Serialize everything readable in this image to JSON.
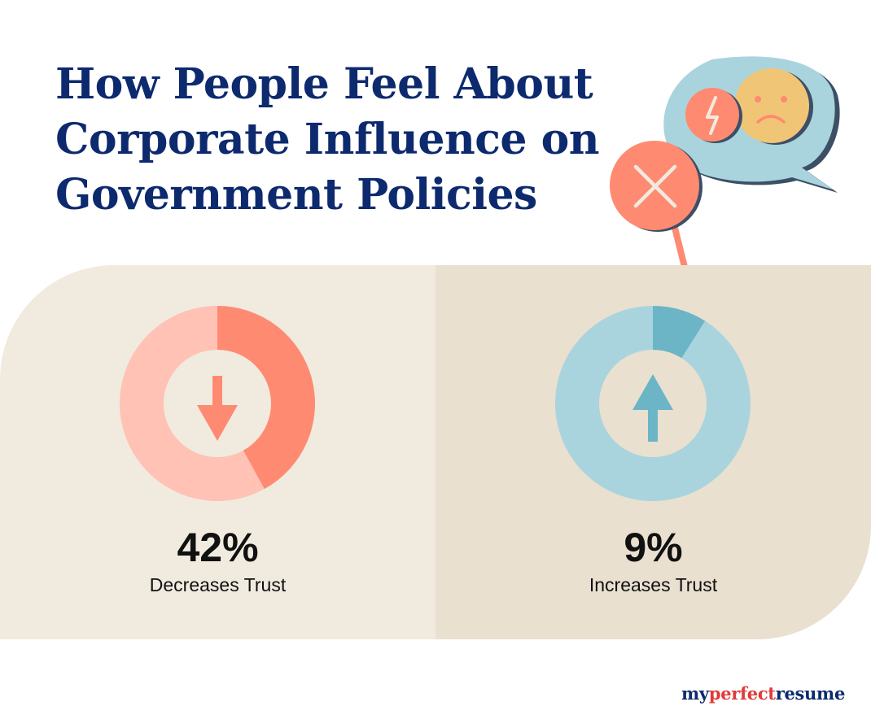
{
  "title_lines": [
    "How People Feel About",
    "Corporate Influence on",
    "Government Policies"
  ],
  "colors": {
    "title": "#0d2a6e",
    "decrease_filled": "#ff8a72",
    "decrease_track": "#ffc2b5",
    "increase_filled": "#6bb5c6",
    "increase_track": "#a9d4de",
    "donut_hole_left": "#f1ebdf",
    "donut_hole_right": "#e9e0d0"
  },
  "chart_data": [
    {
      "type": "pie",
      "values": [
        42,
        58
      ],
      "value_label": "42%",
      "label": "Decreases Trust",
      "icon": "arrow-down-icon"
    },
    {
      "type": "pie",
      "values": [
        9,
        91
      ],
      "value_label": "9%",
      "label": "Increases Trust",
      "icon": "arrow-up-icon"
    }
  ],
  "logo": {
    "part1": "my",
    "part2": "perfect",
    "part3": "resume"
  }
}
